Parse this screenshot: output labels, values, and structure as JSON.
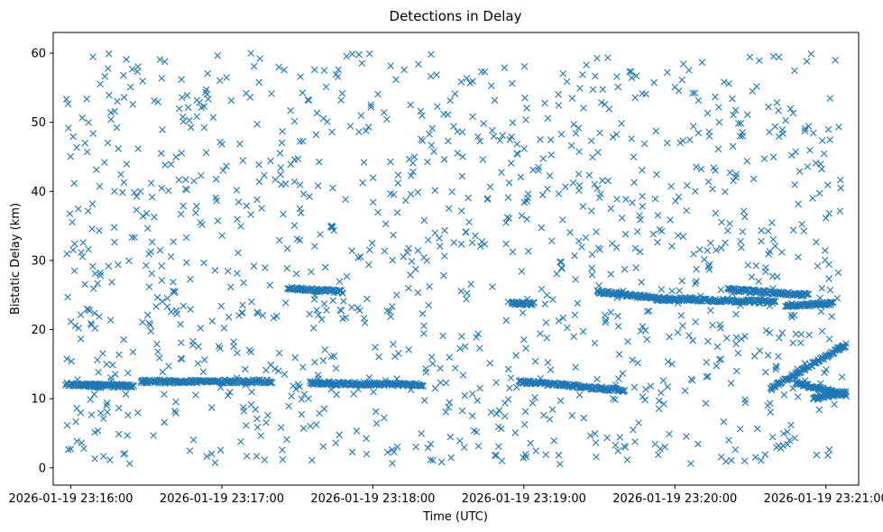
{
  "chart_data": {
    "type": "scatter",
    "title": "Detections in Delay",
    "xlabel": "Time (UTC)",
    "ylabel": "Bistatic Delay (km)",
    "x_tick_labels": [
      "2026-01-19 23:16:00",
      "2026-01-19 23:17:00",
      "2026-01-19 23:18:00",
      "2026-01-19 23:19:00",
      "2026-01-19 23:20:00",
      "2026-01-19 23:21:00"
    ],
    "x_range": [
      "2026-01-19 23:15:53",
      "2026-01-19 23:21:13"
    ],
    "y_ticks": [
      0,
      10,
      20,
      30,
      40,
      50,
      60
    ],
    "ylim": [
      -2.5,
      63
    ],
    "marker": "x",
    "color": "#1f77b4",
    "grid": false,
    "legend": "none",
    "series": [
      {
        "name": "",
        "time_start": "2026-01-19 23:15:58",
        "time_end": "2026-01-19 23:21:07",
        "noise_delay_range": [
          0.5,
          60
        ],
        "tracks": [
          {
            "time_start": "2026-01-19 23:15:58",
            "time_end": "2026-01-19 23:16:12",
            "delay_start": 12.1,
            "delay_end": 11.8
          },
          {
            "time_start": "2026-01-19 23:16:04",
            "time_end": "2026-01-19 23:16:25",
            "delay_start": 12.0,
            "delay_end": 11.8
          },
          {
            "time_start": "2026-01-19 23:16:28",
            "time_end": "2026-01-19 23:17:20",
            "delay_start": 12.5,
            "delay_end": 12.5
          },
          {
            "time_start": "2026-01-19 23:17:26",
            "time_end": "2026-01-19 23:17:48",
            "delay_start": 26.0,
            "delay_end": 25.5
          },
          {
            "time_start": "2026-01-19 23:17:35",
            "time_end": "2026-01-19 23:18:20",
            "delay_start": 12.3,
            "delay_end": 12.0
          },
          {
            "time_start": "2026-01-19 23:18:55",
            "time_end": "2026-01-19 23:19:04",
            "delay_start": 23.8,
            "delay_end": 23.8
          },
          {
            "time_start": "2026-01-19 23:18:58",
            "time_end": "2026-01-19 23:19:40",
            "delay_start": 12.5,
            "delay_end": 11.2
          },
          {
            "time_start": "2026-01-19 23:19:29",
            "time_end": "2026-01-19 23:19:58",
            "delay_start": 25.5,
            "delay_end": 24.3
          },
          {
            "time_start": "2026-01-19 23:19:53",
            "time_end": "2026-01-19 23:20:40",
            "delay_start": 24.5,
            "delay_end": 24.0
          },
          {
            "time_start": "2026-01-19 23:20:38",
            "time_end": "2026-01-19 23:21:08",
            "delay_start": 11.5,
            "delay_end": 17.8
          },
          {
            "time_start": "2026-01-19 23:20:21",
            "time_end": "2026-01-19 23:20:53",
            "delay_start": 25.8,
            "delay_end": 25.0
          },
          {
            "time_start": "2026-01-19 23:20:44",
            "time_end": "2026-01-19 23:21:03",
            "delay_start": 23.5,
            "delay_end": 23.8
          },
          {
            "time_start": "2026-01-19 23:20:48",
            "time_end": "2026-01-19 23:21:08",
            "delay_start": 12.3,
            "delay_end": 10.5
          },
          {
            "time_start": "2026-01-19 23:20:55",
            "time_end": "2026-01-19 23:21:08",
            "delay_start": 10.0,
            "delay_end": 11.0
          }
        ]
      }
    ]
  }
}
